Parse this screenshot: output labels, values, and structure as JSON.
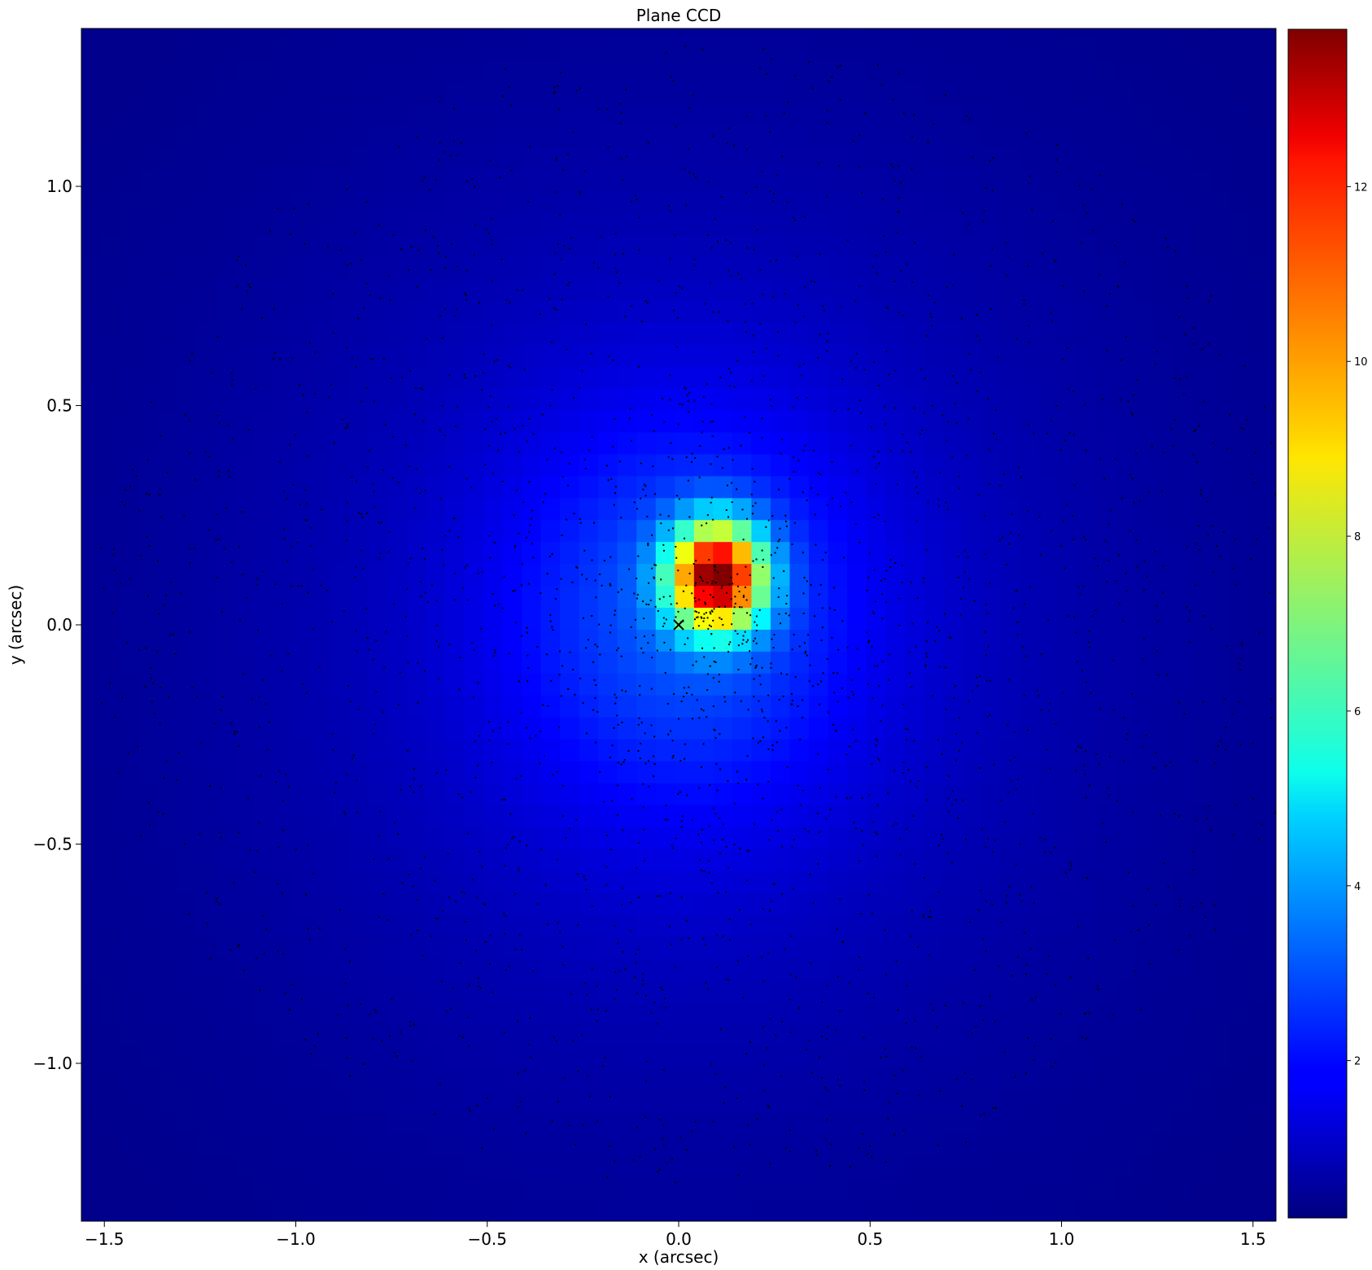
{
  "chart_data": {
    "type": "heatmap",
    "title": "Plane CCD",
    "xlabel": "x (arcsec)",
    "ylabel": "y (arcsec)",
    "xlim": [
      -1.56,
      1.56
    ],
    "ylim": [
      -1.36,
      1.36
    ],
    "xticks": [
      -1.5,
      -1.0,
      -0.5,
      0.0,
      0.5,
      1.0,
      1.5
    ],
    "xtick_labels": [
      "−1.5",
      "−1.0",
      "−0.5",
      "0.0",
      "0.5",
      "1.0",
      "1.5"
    ],
    "yticks": [
      -1.0,
      -0.5,
      0.0,
      0.5,
      1.0
    ],
    "ytick_labels": [
      "−1.0",
      "−0.5",
      "0.0",
      "0.5",
      "1.0"
    ],
    "colormap": "jet",
    "colorbar": {
      "range": [
        0.2,
        13.8
      ],
      "ticks": [
        2,
        4,
        6,
        8,
        10,
        12
      ],
      "tick_labels": [
        "2",
        "4",
        "6",
        "8",
        "10",
        "12"
      ]
    },
    "peak": {
      "x": 0.1,
      "y": 0.11,
      "value": 13.8
    },
    "background_value": 0.3,
    "pixel_scale": 0.05,
    "marker": {
      "symbol": "x",
      "x": 0.0,
      "y": 0.0,
      "color": "#000000"
    },
    "grid": false,
    "legend": "none"
  }
}
